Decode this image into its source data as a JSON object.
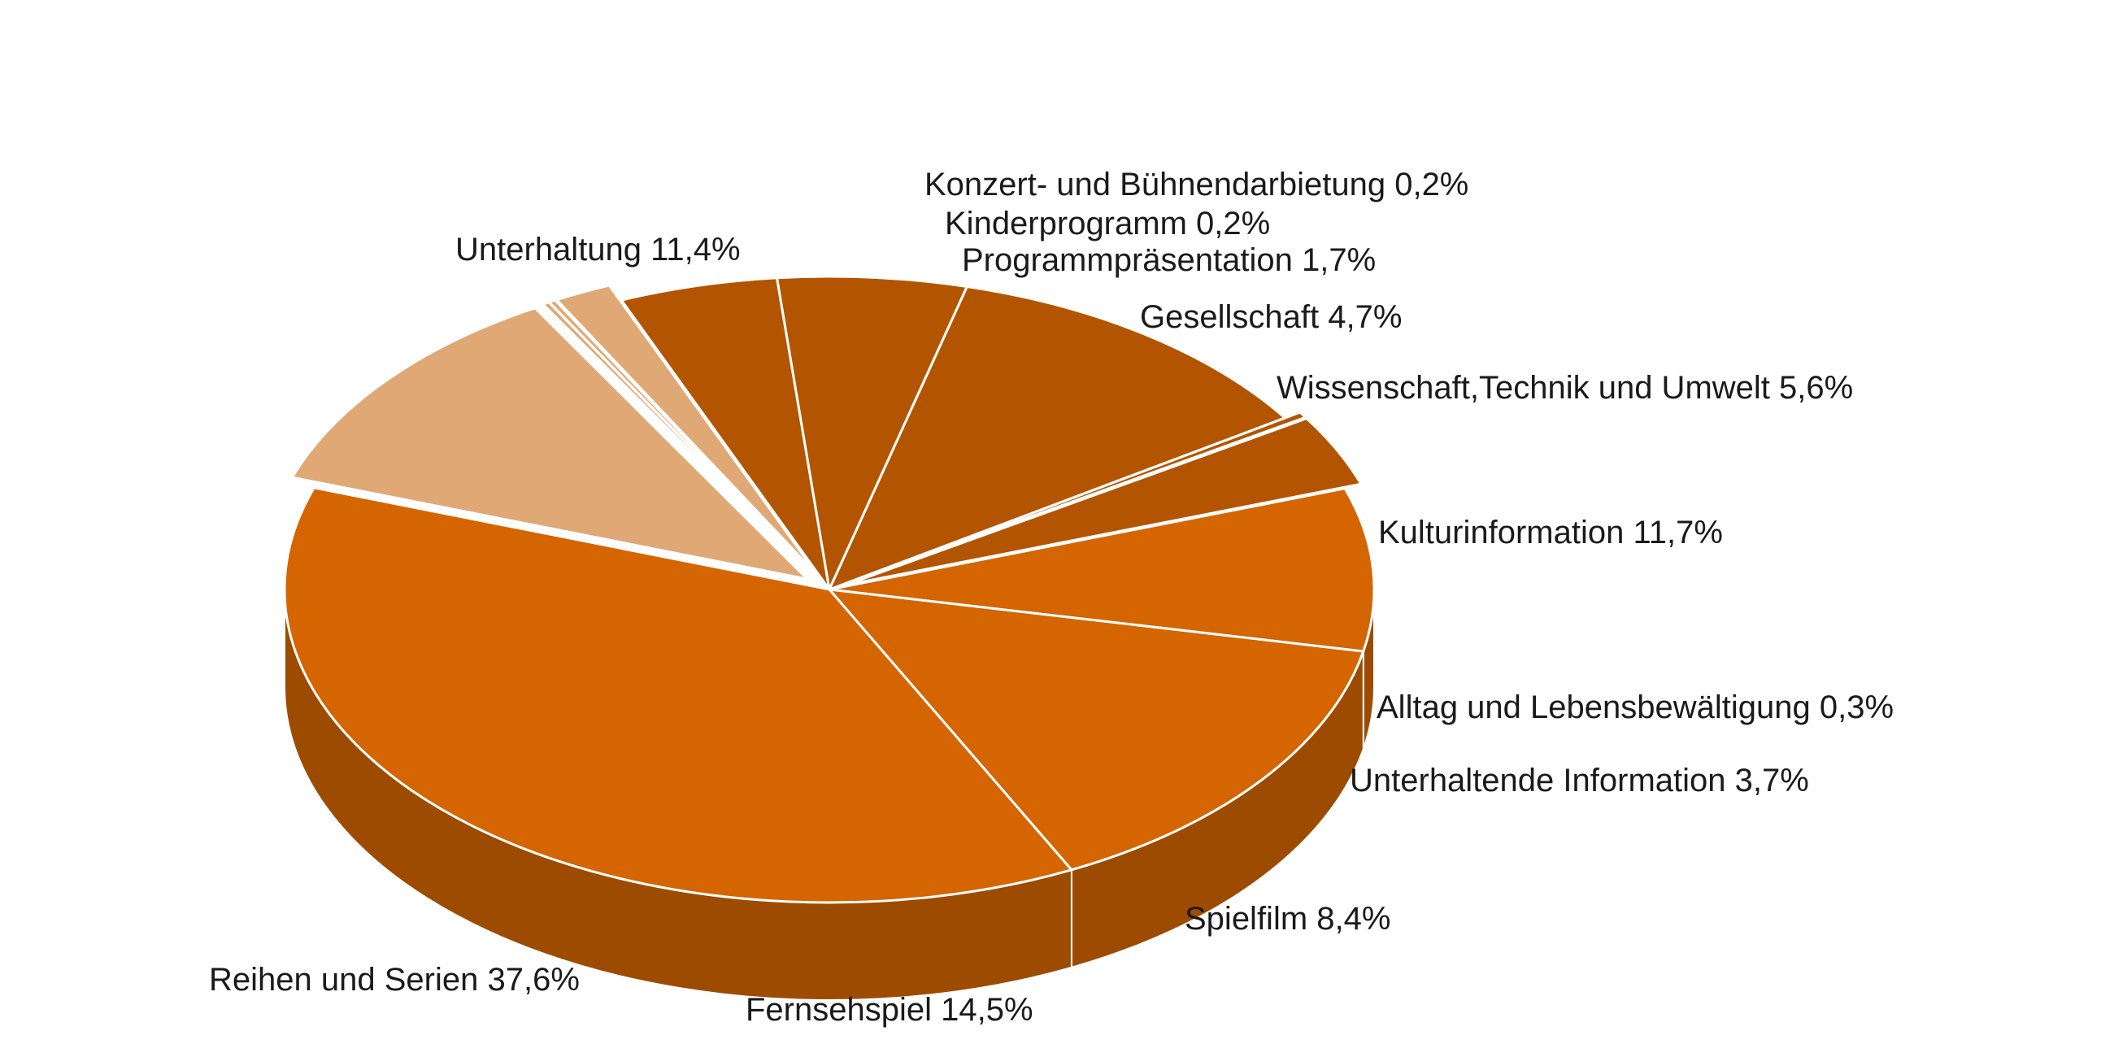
{
  "chart_data": {
    "type": "pie",
    "style": "3d-exploded",
    "slices": [
      {
        "label": "Konzert- und Bühnendarbietung",
        "value": "0,2%",
        "pct": 0.2,
        "color": "#dfa874"
      },
      {
        "label": "Kinderprogramm",
        "value": "0,2%",
        "pct": 0.2,
        "color": "#dfa874"
      },
      {
        "label": "Programmpräsentation",
        "value": "1,7%",
        "pct": 1.7,
        "color": "#dfa874"
      },
      {
        "label": "Gesellschaft",
        "value": "4,7%",
        "pct": 4.7,
        "color": "#b35500"
      },
      {
        "label": "Wissenschaft,Technik und Umwelt",
        "value": "5,6%",
        "pct": 5.6,
        "color": "#b35500"
      },
      {
        "label": "Kulturinformation",
        "value": "11,7%",
        "pct": 11.7,
        "color": "#b35500"
      },
      {
        "label": "Alltag und Lebensbewältigung",
        "value": "0,3%",
        "pct": 0.3,
        "color": "#b35500"
      },
      {
        "label": "Unterhaltende Information",
        "value": "3,7%",
        "pct": 3.7,
        "color": "#b35500"
      },
      {
        "label": "Spielfilm",
        "value": "8,4%",
        "pct": 8.4,
        "color": "#d46500"
      },
      {
        "label": "Fernsehspiel",
        "value": "14,5%",
        "pct": 14.5,
        "color": "#d46500"
      },
      {
        "label": "Reihen und Serien",
        "value": "37,6%",
        "pct": 37.6,
        "color": "#d46500"
      },
      {
        "label": "Unterhaltung",
        "value": "11,4%",
        "pct": 11.4,
        "color": "#dfa874"
      }
    ]
  }
}
